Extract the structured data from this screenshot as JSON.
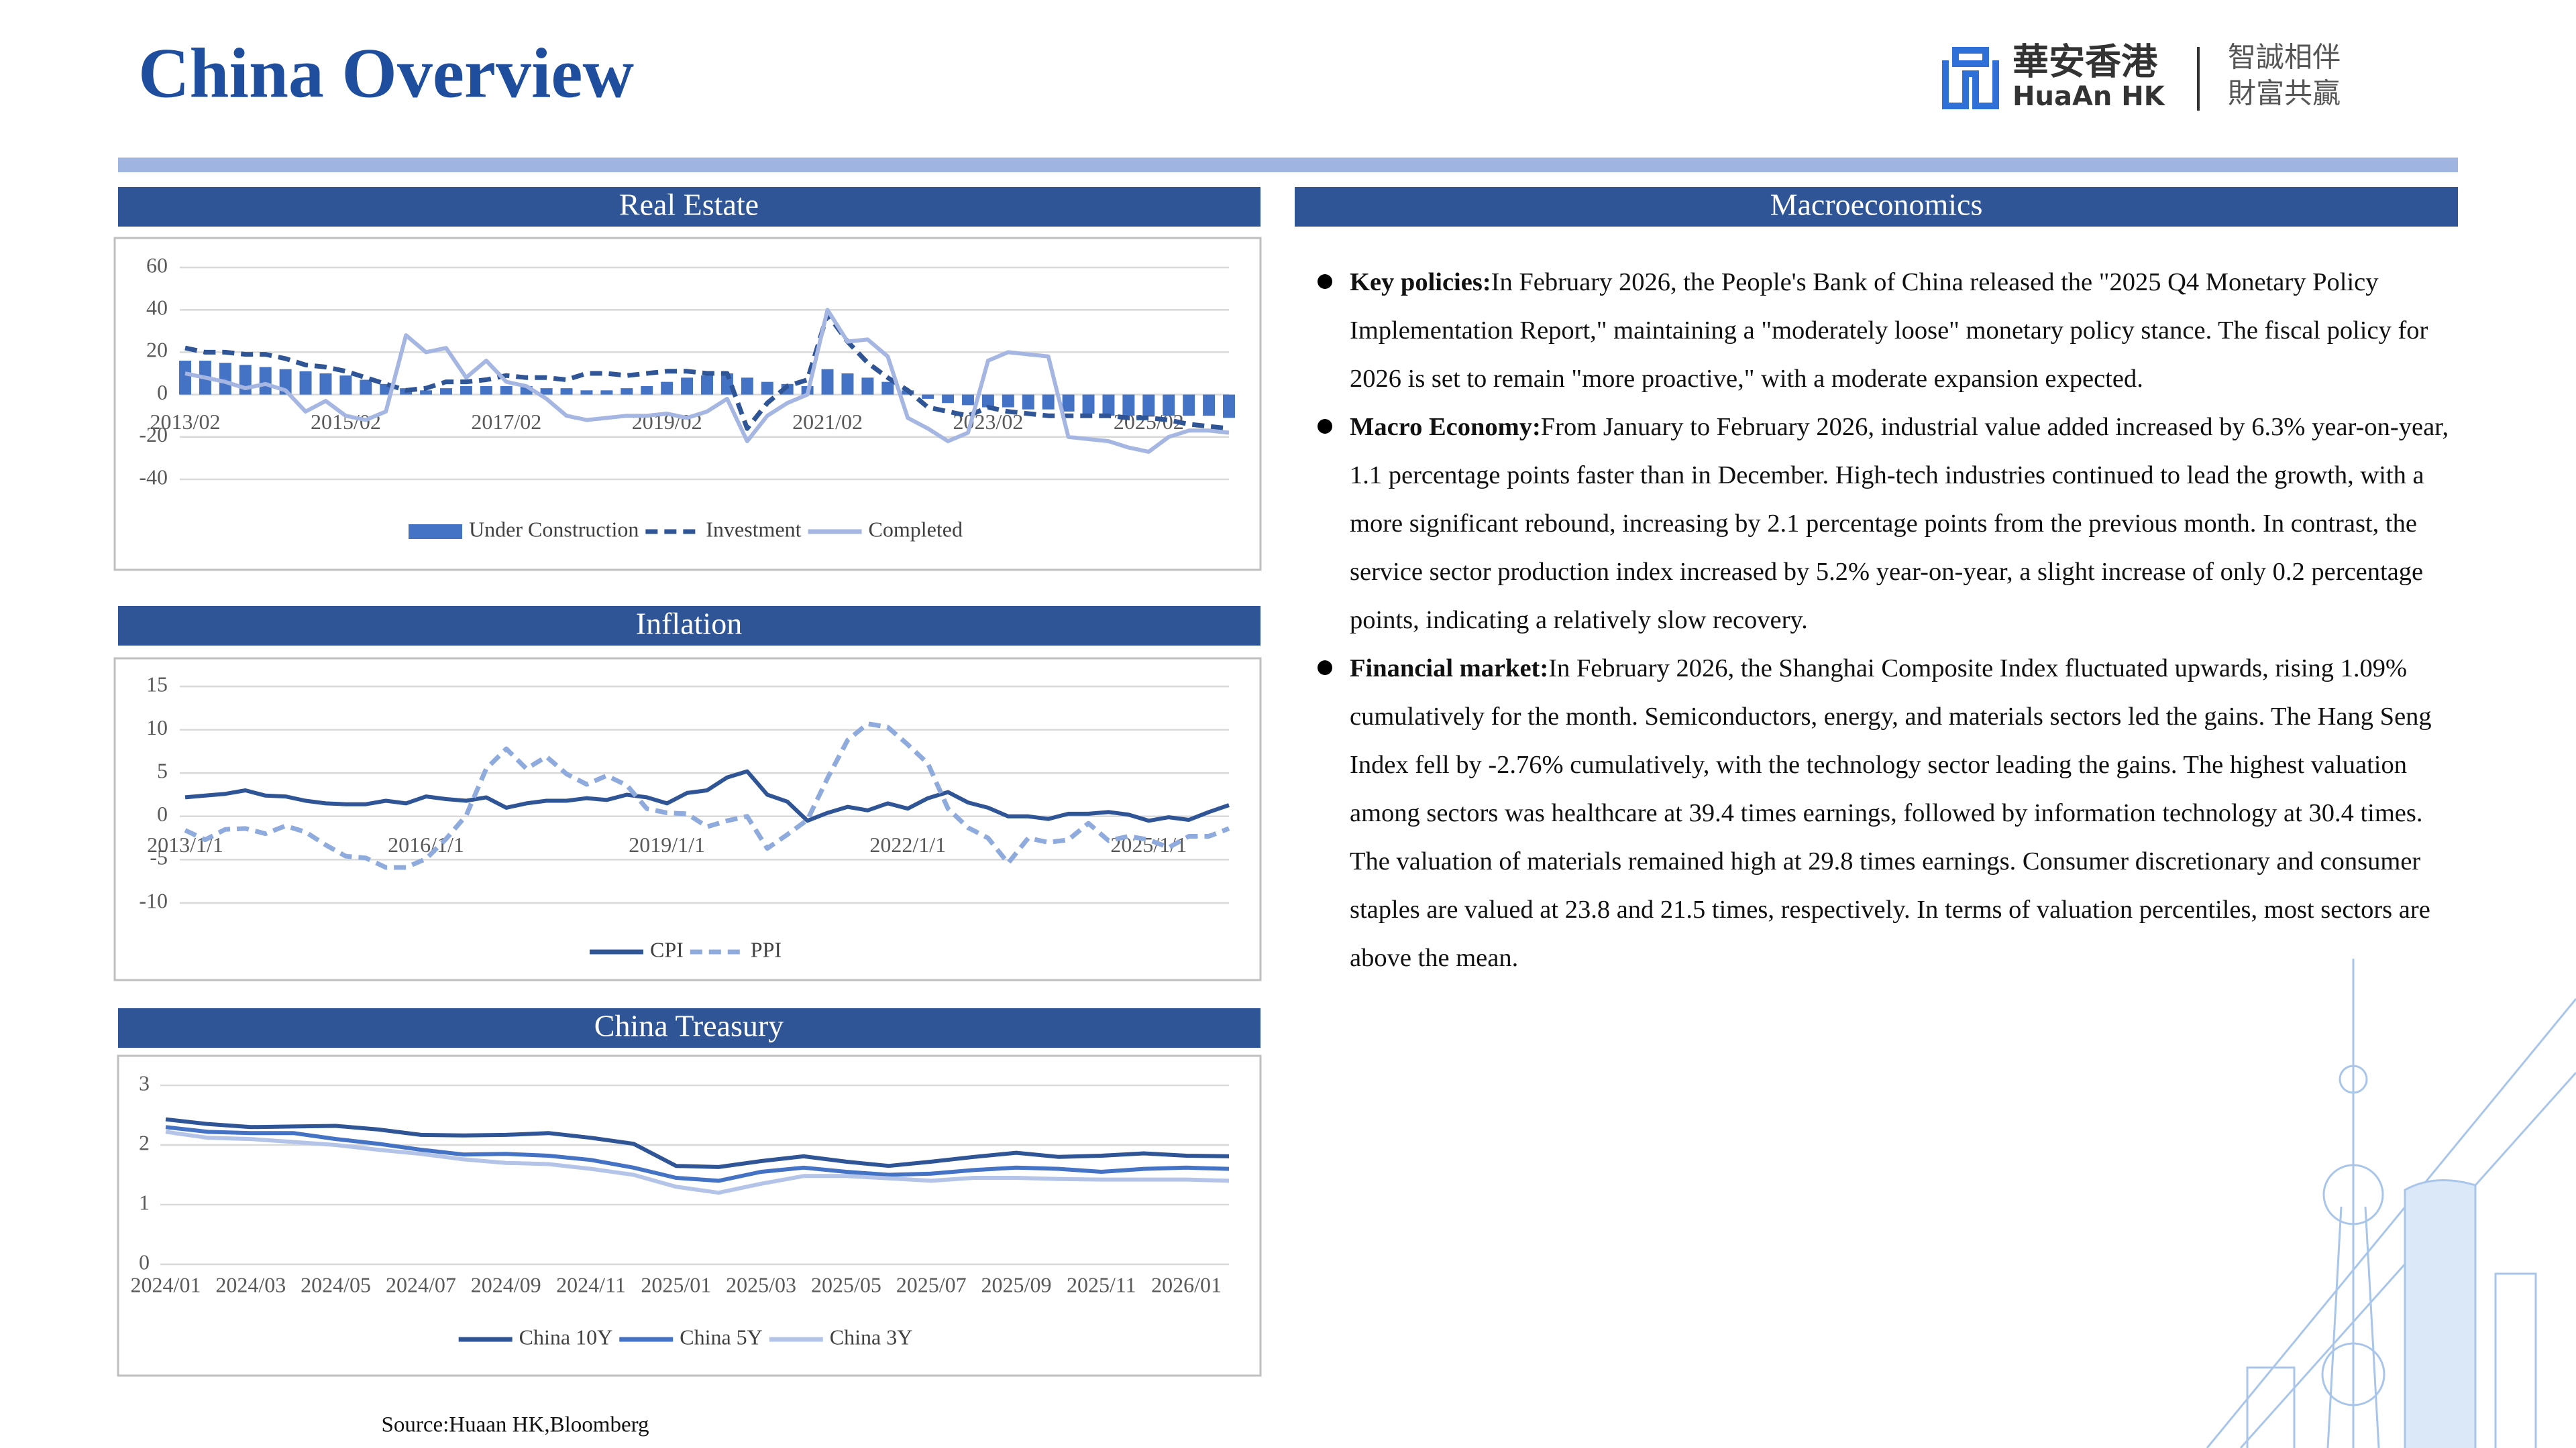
{
  "header": {
    "title": "China Overview",
    "logo_cn": "華安香港",
    "logo_en": "HuaAn HK",
    "slogan_1": "智誠相伴",
    "slogan_2": "財富共贏"
  },
  "macro": {
    "title": "Macroeconomics",
    "items": [
      {
        "label": "Key policies:",
        "text": "In February 2026, the People's Bank of China released the \"2025 Q4 Monetary Policy Implementation Report,\" maintaining a \"moderately loose\" monetary policy stance. The fiscal policy for 2026 is set to remain \"more proactive,\" with a moderate expansion expected."
      },
      {
        "label": "Macro Economy:",
        "text": "From January to February 2026, industrial value added increased by 6.3% year-on-year, 1.1 percentage points faster than in December. High-tech industries continued to lead the growth, with a more significant rebound, increasing by 2.1 percentage points from the previous month. In contrast, the service sector production index increased by 5.2% year-on-year, a slight increase of only 0.2 percentage points, indicating a relatively slow recovery."
      },
      {
        "label": "Financial market:",
        "text": "In February 2026, the Shanghai Composite Index fluctuated upwards, rising 1.09% cumulatively for the month. Semiconductors, energy, and materials sectors led the gains. The Hang Seng Index fell by -2.76% cumulatively, with the technology sector leading the gains. The highest valuation among sectors was healthcare at 39.4 times earnings, followed by information technology at 30.4 times. The valuation of materials remained high at 29.8 times earnings. Consumer discretionary and consumer staples are valued at 23.8 and 21.5 times, respectively. In terms of valuation percentiles, most sectors are above the mean."
      }
    ]
  },
  "source": "Source:Huaan HK,Bloomberg",
  "chart_data": [
    {
      "type": "combo",
      "title": "Real Estate",
      "grid": true,
      "legend": "bottom",
      "categories": [
        "2013/02",
        null,
        null,
        null,
        null,
        null,
        null,
        null,
        "2015/02",
        null,
        null,
        null,
        null,
        null,
        null,
        null,
        "2017/02",
        null,
        null,
        null,
        null,
        null,
        null,
        null,
        "2019/02",
        null,
        null,
        null,
        null,
        null,
        null,
        null,
        "2021/02",
        null,
        null,
        null,
        null,
        null,
        null,
        null,
        "2023/02",
        null,
        null,
        null,
        null,
        null,
        null,
        null,
        "2025/02",
        null,
        null,
        null,
        null
      ],
      "ylim": [
        -40,
        60
      ],
      "yticks": [
        -40,
        -20,
        0,
        20,
        40,
        60
      ],
      "series": [
        {
          "name": "Under Construction",
          "type": "bar",
          "color": "#4472c4",
          "values": [
            16,
            16,
            15,
            14,
            13,
            12,
            11,
            10,
            9,
            7,
            5,
            3,
            2,
            3,
            4,
            4,
            4,
            4,
            3,
            3,
            2,
            2,
            3,
            4,
            6,
            8,
            9,
            10,
            8,
            6,
            5,
            4,
            12,
            10,
            8,
            6,
            2,
            -2,
            -4,
            -5,
            -6,
            -6,
            -7,
            -7,
            -8,
            -9,
            -10,
            -10,
            -10,
            -10,
            -10,
            -10,
            -11
          ]
        },
        {
          "name": "Investment",
          "type": "line",
          "dash": true,
          "color": "#2f5597",
          "values": [
            22,
            20,
            20,
            19,
            19,
            17,
            14,
            13,
            11,
            8,
            5,
            2,
            3,
            6,
            6,
            7,
            9,
            8,
            8,
            7,
            10,
            10,
            9,
            10,
            11,
            11,
            10,
            10,
            -16,
            -4,
            4,
            7,
            38,
            25,
            15,
            8,
            2,
            -6,
            -8,
            -10,
            -6,
            -8,
            -9,
            -10,
            -10,
            -10,
            -10,
            -11,
            -11,
            -12,
            -14,
            -15,
            -16
          ]
        },
        {
          "name": "Completed",
          "type": "line",
          "color": "#a5b6e3",
          "values": [
            10,
            8,
            6,
            3,
            5,
            2,
            -8,
            -3,
            -10,
            -12,
            -8,
            28,
            20,
            22,
            8,
            16,
            6,
            4,
            -2,
            -10,
            -12,
            -11,
            -10,
            -10,
            -9,
            -11,
            -8,
            -2,
            -22,
            -10,
            -4,
            0,
            40,
            25,
            26,
            18,
            -11,
            -16,
            -22,
            -18,
            16,
            20,
            19,
            18,
            -20,
            -21,
            -22,
            -25,
            -27,
            -20,
            -17,
            -17,
            -18
          ]
        }
      ]
    },
    {
      "type": "line",
      "title": "Inflation",
      "grid": true,
      "legend": "bottom",
      "categories": [
        "2013/1/1",
        null,
        null,
        null,
        null,
        null,
        null,
        null,
        null,
        null,
        null,
        null,
        "2016/1/1",
        null,
        null,
        null,
        null,
        null,
        null,
        null,
        null,
        null,
        null,
        null,
        "2019/1/1",
        null,
        null,
        null,
        null,
        null,
        null,
        null,
        null,
        null,
        null,
        null,
        "2022/1/1",
        null,
        null,
        null,
        null,
        null,
        null,
        null,
        null,
        null,
        null,
        null,
        "2025/1/1",
        null,
        null,
        null,
        null
      ],
      "ylim": [
        -10,
        15
      ],
      "yticks": [
        -10,
        -5,
        0,
        5,
        10,
        15
      ],
      "series": [
        {
          "name": "CPI",
          "color": "#2f5597",
          "values": [
            2.2,
            2.4,
            2.6,
            3.0,
            2.4,
            2.3,
            1.8,
            1.5,
            1.4,
            1.4,
            1.8,
            1.5,
            2.3,
            2.0,
            1.8,
            2.2,
            1.0,
            1.5,
            1.8,
            1.8,
            2.1,
            1.9,
            2.5,
            2.2,
            1.5,
            2.7,
            3.0,
            4.5,
            5.2,
            2.5,
            1.7,
            -0.5,
            0.4,
            1.1,
            0.7,
            1.5,
            0.9,
            2.1,
            2.8,
            1.6,
            1.0,
            0,
            0,
            -0.3,
            0.3,
            0.3,
            0.5,
            0.2,
            -0.5,
            -0.1,
            -0.4,
            0.5,
            1.3
          ]
        },
        {
          "name": "PPI",
          "dash": true,
          "color": "#8faadc",
          "values": [
            -1.6,
            -2.7,
            -1.5,
            -1.4,
            -2.0,
            -1.1,
            -1.8,
            -3.3,
            -4.6,
            -4.8,
            -5.9,
            -5.9,
            -4.9,
            -2.6,
            0.1,
            5.5,
            7.8,
            5.5,
            6.9,
            4.9,
            3.7,
            4.7,
            3.6,
            0.9,
            0.4,
            0.3,
            -1.2,
            -0.5,
            0,
            -3.7,
            -2.1,
            -0.4,
            4.4,
            8.8,
            10.7,
            10.3,
            8.3,
            6.1,
            0.9,
            -1.3,
            -2.5,
            -5.4,
            -2.5,
            -3.0,
            -2.7,
            -0.8,
            -2.8,
            -2.3,
            -2.7,
            -3.6,
            -2.3,
            -2.3,
            -1.4
          ]
        }
      ]
    },
    {
      "type": "line",
      "title": "China Treasury",
      "grid": true,
      "legend": "bottom",
      "categories": [
        "2024/01",
        null,
        "2024/03",
        null,
        "2024/05",
        null,
        "2024/07",
        null,
        "2024/09",
        null,
        "2024/11",
        null,
        "2025/01",
        null,
        "2025/03",
        null,
        "2025/05",
        null,
        "2025/07",
        null,
        "2025/09",
        null,
        "2025/11",
        null,
        "2026/01",
        null
      ],
      "ylim": [
        0,
        3
      ],
      "yticks": [
        0,
        1,
        2,
        3
      ],
      "series": [
        {
          "name": "China 10Y",
          "color": "#2f5597",
          "values": [
            2.43,
            2.35,
            2.3,
            2.31,
            2.32,
            2.26,
            2.17,
            2.16,
            2.17,
            2.2,
            2.12,
            2.02,
            1.65,
            1.63,
            1.73,
            1.81,
            1.72,
            1.65,
            1.72,
            1.8,
            1.87,
            1.8,
            1.82,
            1.86,
            1.82,
            1.81
          ]
        },
        {
          "name": "China 5Y",
          "color": "#4472c4",
          "values": [
            2.3,
            2.22,
            2.2,
            2.2,
            2.1,
            2.02,
            1.92,
            1.84,
            1.85,
            1.82,
            1.75,
            1.62,
            1.45,
            1.4,
            1.55,
            1.62,
            1.55,
            1.5,
            1.52,
            1.58,
            1.62,
            1.6,
            1.55,
            1.6,
            1.62,
            1.6
          ]
        },
        {
          "name": "China 3Y",
          "color": "#b4c4e8",
          "values": [
            2.22,
            2.12,
            2.1,
            2.05,
            2.0,
            1.92,
            1.85,
            1.76,
            1.7,
            1.68,
            1.6,
            1.5,
            1.3,
            1.2,
            1.35,
            1.48,
            1.48,
            1.44,
            1.4,
            1.45,
            1.45,
            1.43,
            1.42,
            1.42,
            1.42,
            1.4
          ]
        }
      ]
    }
  ]
}
